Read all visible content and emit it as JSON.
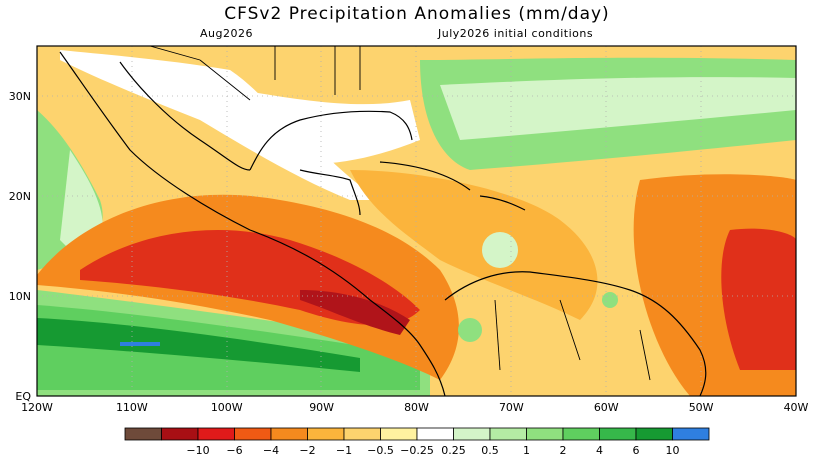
{
  "title": "CFSv2 Precipitation Anomalies (mm/day)",
  "subtitle_left": "Aug2026",
  "subtitle_right": "July2026 initial conditions",
  "lat_labels": [
    "30N",
    "20N",
    "10N",
    "EQ"
  ],
  "lon_labels": [
    "120W",
    "110W",
    "100W",
    "90W",
    "80W",
    "70W",
    "60W",
    "50W",
    "40W"
  ],
  "colorbar": {
    "colors": [
      "#6e4a3a",
      "#a80f14",
      "#e01a1a",
      "#f05a14",
      "#f58a1e",
      "#fbb43c",
      "#fdd36e",
      "#fff2a0",
      "#ffffff",
      "#d4f5c8",
      "#b4eca4",
      "#8fe07f",
      "#5fcf5f",
      "#36b84a",
      "#169a32",
      "#2f7fe0"
    ],
    "labels": [
      "−10",
      "−6",
      "−4",
      "−2",
      "−1",
      "−0.5",
      "−0.25",
      "0.25",
      "0.5",
      "1",
      "2",
      "4",
      "6",
      "10"
    ]
  },
  "map": {
    "lon_range": [
      -120,
      -40
    ],
    "lat_range": [
      0,
      35
    ],
    "gridlines": true,
    "contours": [
      {
        "category": "strong-dry",
        "color": "#e0301a",
        "value": -4
      },
      {
        "category": "very-strong-dry",
        "color": "#b0141a",
        "value": -6
      },
      {
        "category": "moderate-dry",
        "color": "#f58a1e",
        "value": -2
      },
      {
        "category": "weak-dry",
        "color": "#fbb43c",
        "value": -1
      },
      {
        "category": "slight-dry",
        "color": "#fdd36e",
        "value": -0.5
      },
      {
        "category": "weak-wet",
        "color": "#b4eca4",
        "value": 0.5
      },
      {
        "category": "moderate-wet",
        "color": "#5fcf5f",
        "value": 2
      },
      {
        "category": "strong-wet",
        "color": "#169a32",
        "value": 6
      },
      {
        "category": "very-strong-wet",
        "color": "#2f7fe0",
        "value": 10
      }
    ]
  }
}
